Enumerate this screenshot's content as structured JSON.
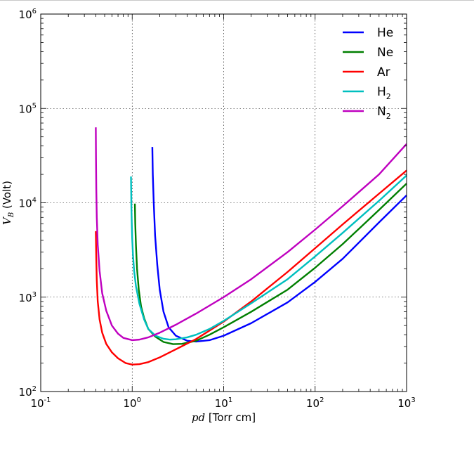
{
  "chart_data": {
    "type": "line",
    "xscale": "log",
    "yscale": "log",
    "xlim": [
      0.1,
      1000
    ],
    "ylim": [
      100,
      1000000
    ],
    "grid": true,
    "legend_position": "top-right",
    "xlabel": {
      "var": "pd",
      "text": "[Torr cm]"
    },
    "ylabel": {
      "var": "V",
      "sub": "B",
      "text": "(Volt)"
    },
    "x_ticks": [
      {
        "value": 0.1,
        "base": "10",
        "exp": "-1"
      },
      {
        "value": 1,
        "base": "10",
        "exp": "0"
      },
      {
        "value": 10,
        "base": "10",
        "exp": "1"
      },
      {
        "value": 100,
        "base": "10",
        "exp": "2"
      },
      {
        "value": 1000,
        "base": "10",
        "exp": "3"
      }
    ],
    "y_ticks": [
      {
        "value": 100,
        "base": "10",
        "exp": "2"
      },
      {
        "value": 1000,
        "base": "10",
        "exp": "3"
      },
      {
        "value": 10000,
        "base": "10",
        "exp": "4"
      },
      {
        "value": 100000,
        "base": "10",
        "exp": "5"
      },
      {
        "value": 1000000,
        "base": "10",
        "exp": "6"
      }
    ],
    "series": [
      {
        "name": "He",
        "sub": "",
        "color": "#0000ff",
        "x": [
          1.66,
          1.68,
          1.72,
          1.78,
          1.88,
          2.0,
          2.2,
          2.5,
          3.0,
          4.0,
          5.0,
          7.0,
          10,
          20,
          50,
          100,
          200,
          500,
          1000
        ],
        "y": [
          39000,
          20000,
          10000,
          4500,
          2200,
          1200,
          700,
          480,
          390,
          345,
          338,
          350,
          390,
          530,
          880,
          1450,
          2550,
          6200,
          12000
        ]
      },
      {
        "name": "Ne",
        "sub": "",
        "color": "#007f00",
        "x": [
          1.07,
          1.08,
          1.1,
          1.13,
          1.18,
          1.25,
          1.35,
          1.5,
          1.8,
          2.2,
          2.8,
          3.5,
          5,
          7,
          10,
          20,
          50,
          100,
          200,
          500,
          1000
        ],
        "y": [
          9800,
          6000,
          3500,
          2000,
          1200,
          800,
          600,
          460,
          380,
          335,
          318,
          320,
          345,
          400,
          480,
          700,
          1200,
          2050,
          3650,
          8400,
          16000
        ]
      },
      {
        "name": "Ar",
        "sub": "",
        "color": "#ff0000",
        "x": [
          0.4,
          0.405,
          0.41,
          0.42,
          0.44,
          0.47,
          0.52,
          0.6,
          0.7,
          0.85,
          1.0,
          1.2,
          1.5,
          2.0,
          3.0,
          5.0,
          10,
          20,
          50,
          100,
          200,
          500,
          1000
        ],
        "y": [
          5000,
          2500,
          1500,
          900,
          580,
          420,
          320,
          260,
          225,
          200,
          193,
          195,
          205,
          230,
          280,
          360,
          550,
          900,
          1850,
          3300,
          5900,
          12500,
          22000
        ]
      },
      {
        "name": "H",
        "sub": "2",
        "color": "#00bfbf",
        "x": [
          0.97,
          0.975,
          0.98,
          0.99,
          1.0,
          1.02,
          1.05,
          1.1,
          1.2,
          1.35,
          1.5,
          1.8,
          2.2,
          2.6,
          3.0,
          4.0,
          5.0,
          7.0,
          10,
          20,
          50,
          100,
          200,
          500,
          1000
        ],
        "y": [
          19000,
          13000,
          9000,
          6000,
          4200,
          2800,
          1900,
          1300,
          850,
          580,
          460,
          390,
          362,
          355,
          358,
          375,
          400,
          460,
          560,
          860,
          1550,
          2700,
          4800,
          10500,
          19500
        ]
      },
      {
        "name": "N",
        "sub": "2",
        "color": "#bf00bf",
        "x": [
          0.4,
          0.402,
          0.405,
          0.41,
          0.42,
          0.44,
          0.47,
          0.52,
          0.6,
          0.7,
          0.8,
          1.0,
          1.2,
          1.5,
          2.0,
          3.0,
          5.0,
          10,
          20,
          50,
          100,
          200,
          500,
          1000
        ],
        "y": [
          63000,
          30000,
          14000,
          7000,
          3600,
          1900,
          1100,
          720,
          500,
          410,
          370,
          350,
          355,
          375,
          420,
          510,
          670,
          1000,
          1550,
          3000,
          5200,
          9200,
          20000,
          42000
        ]
      }
    ]
  }
}
